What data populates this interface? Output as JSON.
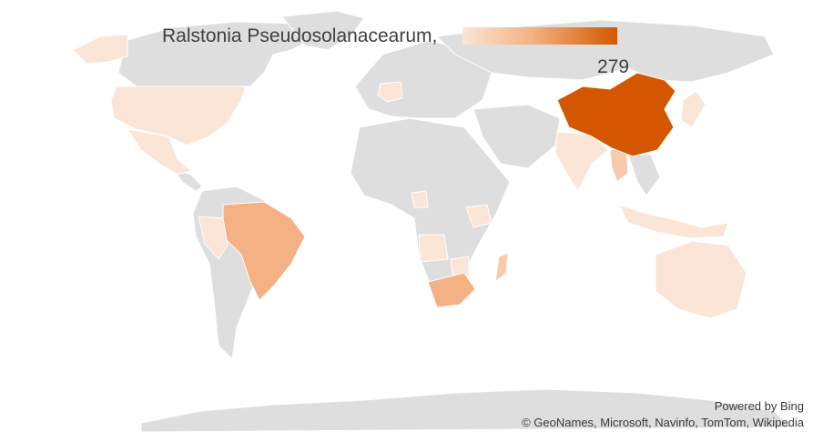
{
  "title": "Ralstonia Pseudosolanacearum,",
  "legend": {
    "max_label": "279",
    "color_low": "#fbe5d6",
    "color_high": "#d45700"
  },
  "attribution": {
    "powered_by": "Powered by Bing",
    "credits": "© GeoNames, Microsoft, Navinfo, TomTom, Wikipedia"
  },
  "colors": {
    "no_data": "#dedede",
    "low": "#fbe5d6",
    "low_mid": "#f8cbad",
    "mid": "#f4b183",
    "high": "#d45700"
  },
  "regions": [
    {
      "name": "China",
      "value": 279,
      "level": "high"
    },
    {
      "name": "Brazil",
      "level": "mid"
    },
    {
      "name": "South Africa",
      "level": "mid"
    },
    {
      "name": "Myanmar",
      "level": "low_mid"
    },
    {
      "name": "United States",
      "level": "low"
    },
    {
      "name": "Alaska",
      "level": "low"
    },
    {
      "name": "Mexico",
      "level": "low"
    },
    {
      "name": "Peru",
      "level": "low"
    },
    {
      "name": "France",
      "level": "low"
    },
    {
      "name": "India",
      "level": "low"
    },
    {
      "name": "Japan",
      "level": "low"
    },
    {
      "name": "Indonesia",
      "level": "low"
    },
    {
      "name": "Australia",
      "level": "low"
    },
    {
      "name": "Madagascar",
      "level": "low_mid"
    },
    {
      "name": "Angola",
      "level": "low"
    },
    {
      "name": "Kenya",
      "level": "low"
    },
    {
      "name": "Cameroon",
      "level": "low"
    },
    {
      "name": "Zimbabwe",
      "level": "low"
    }
  ]
}
